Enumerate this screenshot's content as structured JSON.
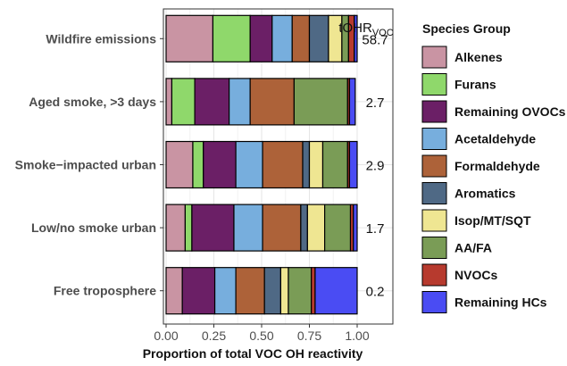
{
  "chart_data": {
    "type": "bar",
    "orientation": "horizontal",
    "stacked": true,
    "xlabel": "Proportion of total VOC OH reactivity",
    "xlim": [
      0,
      1
    ],
    "x_ticks": [
      "0.00",
      "0.25",
      "0.50",
      "0.75",
      "1.00"
    ],
    "grid": true,
    "legend_position": "right",
    "legend_title": "Species Group",
    "categories": [
      "Wildfire emissions",
      "Aged smoke, >3 days",
      "Smoke−impacted urban",
      "Low/no smoke urban",
      "Free troposphere"
    ],
    "tohr": {
      "title_main": "tOHR",
      "title_sub": "VOC",
      "values": [
        "58.7",
        "2.7",
        "2.9",
        "1.7",
        "0.2"
      ]
    },
    "series": [
      {
        "name": "Alkenes",
        "color": "#C994A3",
        "values": [
          0.245,
          0.03,
          0.14,
          0.1,
          0.085
        ]
      },
      {
        "name": "Furans",
        "color": "#8FD86B",
        "values": [
          0.195,
          0.12,
          0.055,
          0.035,
          0.0
        ]
      },
      {
        "name": "Remaining OVOCs",
        "color": "#6B1F66",
        "values": [
          0.115,
          0.18,
          0.17,
          0.22,
          0.17
        ]
      },
      {
        "name": "Acetaldehyde",
        "color": "#77AEDD",
        "values": [
          0.105,
          0.11,
          0.14,
          0.15,
          0.11
        ]
      },
      {
        "name": "Formaldehyde",
        "color": "#AD6239",
        "values": [
          0.09,
          0.23,
          0.21,
          0.2,
          0.15
        ]
      },
      {
        "name": "Aromatics",
        "color": "#4F6985",
        "values": [
          0.1,
          0.0,
          0.035,
          0.035,
          0.085
        ]
      },
      {
        "name": "Isop/MT/SQT",
        "color": "#EFE692",
        "values": [
          0.07,
          0.0,
          0.07,
          0.09,
          0.04
        ]
      },
      {
        "name": "AA/FA",
        "color": "#7A9C56",
        "values": [
          0.035,
          0.28,
          0.13,
          0.135,
          0.12
        ]
      },
      {
        "name": "NVOCs",
        "color": "#B73A2E",
        "values": [
          0.03,
          0.01,
          0.01,
          0.015,
          0.02
        ]
      },
      {
        "name": "Remaining HCs",
        "color": "#4A4CF3",
        "values": [
          0.015,
          0.03,
          0.04,
          0.02,
          0.22
        ]
      }
    ]
  }
}
